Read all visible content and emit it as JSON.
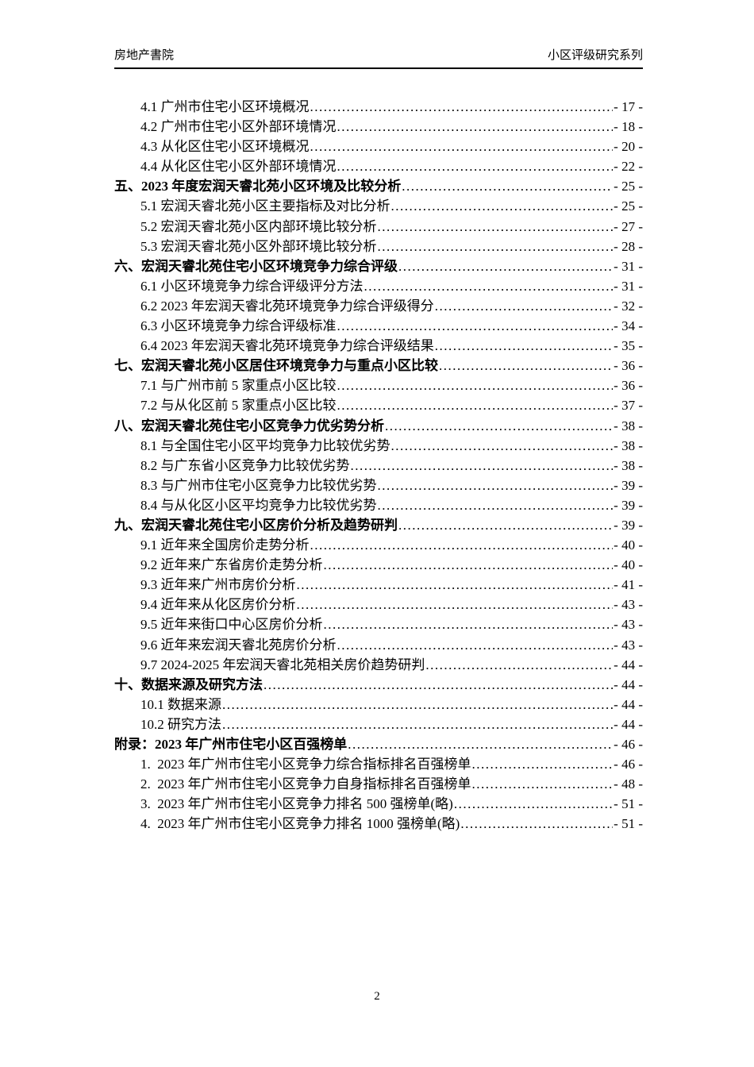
{
  "header": {
    "left": "房地产書院",
    "right": "小区评级研究系列"
  },
  "toc": {
    "entries": [
      {
        "level": 2,
        "text": "4.1 广州市住宅小区环境概况",
        "page": "- 17 -"
      },
      {
        "level": 2,
        "text": "4.2 广州市住宅小区外部环境情况",
        "page": "- 18 -"
      },
      {
        "level": 2,
        "text": "4.3 从化区住宅小区环境概况",
        "page": "- 20 -"
      },
      {
        "level": 2,
        "text": "4.4 从化区住宅小区外部环境情况",
        "page": "- 22 -"
      },
      {
        "level": 1,
        "text": "五、2023 年度宏润天睿北苑小区环境及比较分析",
        "page": "- 25 -"
      },
      {
        "level": 2,
        "text": "5.1 宏润天睿北苑小区主要指标及对比分析",
        "page": "- 25 -"
      },
      {
        "level": 2,
        "text": "5.2 宏润天睿北苑小区内部环境比较分析",
        "page": "- 27 -"
      },
      {
        "level": 2,
        "text": "5.3 宏润天睿北苑小区外部环境比较分析",
        "page": "- 28 -"
      },
      {
        "level": 1,
        "text": "六、宏润天睿北苑住宅小区环境竞争力综合评级",
        "page": "- 31 -"
      },
      {
        "level": 2,
        "text": "6.1 小区环境竞争力综合评级评分方法",
        "page": "- 31 -"
      },
      {
        "level": 2,
        "text": "6.2 2023 年宏润天睿北苑环境竞争力综合评级得分",
        "page": "- 32 -"
      },
      {
        "level": 2,
        "text": "6.3 小区环境竞争力综合评级标准",
        "page": "- 34 -"
      },
      {
        "level": 2,
        "text": "6.4 2023 年宏润天睿北苑环境竞争力综合评级结果",
        "page": "- 35 -"
      },
      {
        "level": 1,
        "text": "七、宏润天睿北苑小区居住环境竞争力与重点小区比较",
        "page": "- 36 -"
      },
      {
        "level": 2,
        "text": "7.1 与广州市前 5 家重点小区比较",
        "page": "- 36 -"
      },
      {
        "level": 2,
        "text": "7.2 与从化区前 5 家重点小区比较",
        "page": "- 37 -"
      },
      {
        "level": 1,
        "text": "八、宏润天睿北苑住宅小区竞争力优劣势分析",
        "page": "- 38 -"
      },
      {
        "level": 2,
        "text": "8.1 与全国住宅小区平均竞争力比较优劣势",
        "page": "- 38 -"
      },
      {
        "level": 2,
        "text": "8.2 与广东省小区竞争力比较优劣势",
        "page": "- 38 -"
      },
      {
        "level": 2,
        "text": "8.3 与广州市住宅小区竞争力比较优劣势",
        "page": "- 39 -"
      },
      {
        "level": 2,
        "text": "8.4 与从化区小区平均竞争力比较优劣势",
        "page": "- 39 -"
      },
      {
        "level": 1,
        "text": "九、宏润天睿北苑住宅小区房价分析及趋势研判",
        "page": "- 39 -"
      },
      {
        "level": 2,
        "text": "9.1 近年来全国房价走势分析",
        "page": "- 40 -"
      },
      {
        "level": 2,
        "text": "9.2 近年来广东省房价走势分析",
        "page": "- 40 -"
      },
      {
        "level": 2,
        "text": "9.3 近年来广州市房价分析",
        "page": "- 41 -"
      },
      {
        "level": 2,
        "text": "9.4 近年来从化区房价分析",
        "page": "- 43 -"
      },
      {
        "level": 2,
        "text": "9.5 近年来街口中心区房价分析",
        "page": "- 43 -"
      },
      {
        "level": 2,
        "text": "9.6 近年来宏润天睿北苑房价分析",
        "page": "- 43 -"
      },
      {
        "level": 2,
        "text": "9.7 2024-2025 年宏润天睿北苑相关房价趋势研判",
        "page": "- 44 -"
      },
      {
        "level": 1,
        "text": "十、数据来源及研究方法",
        "page": "- 44 -"
      },
      {
        "level": 2,
        "text": "10.1 数据来源",
        "page": "- 44 -"
      },
      {
        "level": 2,
        "text": "10.2 研究方法",
        "page": "- 44 -"
      },
      {
        "level": 1,
        "text": "附录：2023 年广州市住宅小区百强榜单",
        "page": "- 46 -"
      },
      {
        "level": 2,
        "text": "1.  2023 年广州市住宅小区竞争力综合指标排名百强榜单",
        "page": "- 46 -"
      },
      {
        "level": 2,
        "text": "2.  2023 年广州市住宅小区竞争力自身指标排名百强榜单",
        "page": "- 48 -"
      },
      {
        "level": 2,
        "text": "3.  2023 年广州市住宅小区竞争力排名 500 强榜单(略)",
        "page": "- 51 -"
      },
      {
        "level": 2,
        "text": "4.  2023 年广州市住宅小区竞争力排名 1000 强榜单(略)",
        "page": "- 51 -"
      }
    ]
  },
  "footer": {
    "page_number": "2"
  }
}
